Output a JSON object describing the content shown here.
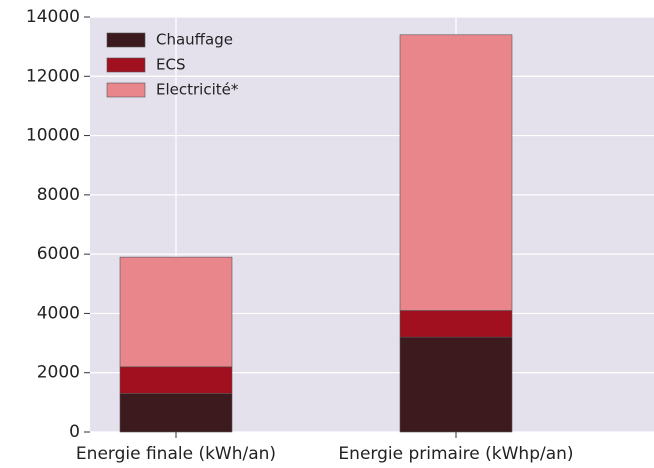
{
  "chart_data": {
    "type": "stacked_bar",
    "categories": [
      "Energie finale (kWh/an)",
      "Energie primaire (kWhp/an)"
    ],
    "series": [
      {
        "name": "Chauffage",
        "color": "#3d1a1e",
        "values": [
          1300,
          3200
        ]
      },
      {
        "name": "ECS",
        "color": "#a0101f",
        "values": [
          900,
          900
        ]
      },
      {
        "name": "Electricité*",
        "color": "#e8868c",
        "values": [
          3700,
          9300
        ]
      }
    ],
    "ylim": [
      0,
      14000
    ],
    "yticks": [
      0,
      2000,
      4000,
      6000,
      8000,
      10000,
      12000,
      14000
    ],
    "grid": true,
    "legend": "upper left"
  }
}
